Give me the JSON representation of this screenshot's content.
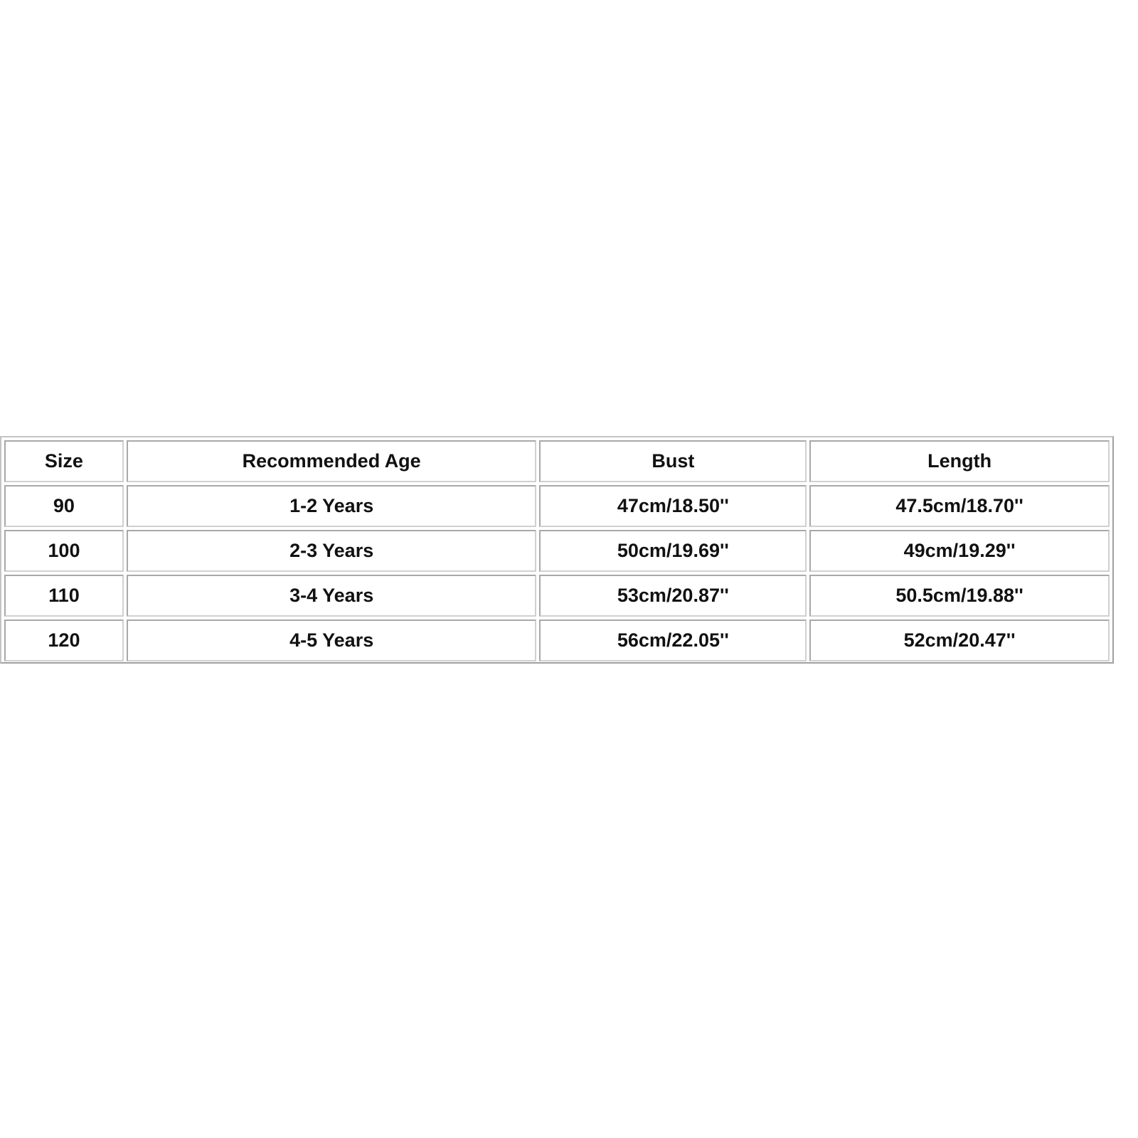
{
  "table": {
    "headers": [
      "Size",
      "Recommended Age",
      "Bust",
      "Length"
    ],
    "rows": [
      [
        "90",
        "1-2 Years",
        "47cm/18.50''",
        "47.5cm/18.70''"
      ],
      [
        "100",
        "2-3 Years",
        "50cm/19.69''",
        "49cm/19.29''"
      ],
      [
        "110",
        "3-4 Years",
        "53cm/20.87''",
        "50.5cm/19.88''"
      ],
      [
        "120",
        "4-5 Years",
        "56cm/22.05''",
        "52cm/20.47''"
      ]
    ]
  }
}
